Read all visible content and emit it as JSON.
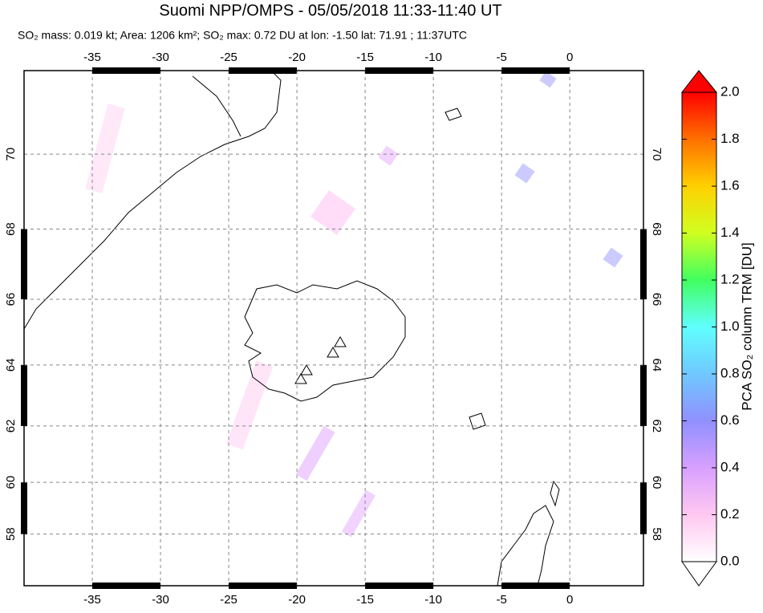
{
  "chart_data": {
    "type": "map",
    "title": "Suomi NPP/OMPS - 05/05/2018 11:33-11:40 UT",
    "subtitle": "SO₂ mass: 0.019 kt; Area: 1206 km²; SO₂ max: 0.72 DU at lon: -1.50 lat: 71.91 ; 11:37UTC",
    "xlim": [
      -40,
      5.4
    ],
    "xticks": [
      -35,
      -30,
      -25,
      -20,
      -15,
      -10,
      -5,
      0
    ],
    "ylim": [
      55.8,
      72.1
    ],
    "yticks": [
      58,
      60,
      62,
      64,
      66,
      68,
      70
    ],
    "grid": true,
    "colorbar": {
      "label": "PCA SO₂ column TRM [DU]",
      "lim": [
        0,
        2
      ],
      "ticks": [
        {
          "value": 0,
          "label": "0.0"
        },
        0.2,
        0.4,
        0.6,
        0.8,
        {
          "value": 1,
          "label": "1.0"
        },
        1.2,
        1.4,
        1.6,
        1.8,
        {
          "value": 2,
          "label": "2.0"
        }
      ],
      "colors": [
        "#ffffff",
        "#ffc8f0",
        "#d8a0ff",
        "#9090ff",
        "#70c8ff",
        "#60ffff",
        "#40ff60",
        "#d0ff20",
        "#ffd000",
        "#ff7000",
        "#ff0000"
      ]
    }
  }
}
